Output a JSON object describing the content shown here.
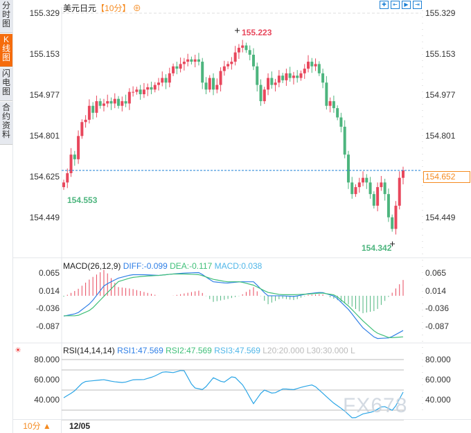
{
  "sidebar": {
    "tabs": [
      {
        "label": "分时图"
      },
      {
        "label": "K线图",
        "active": true
      },
      {
        "label": "闪电图"
      },
      {
        "label": "合约资料"
      }
    ]
  },
  "header": {
    "symbol": "美元日元",
    "period": "【10分】",
    "add_icon": "plus-circle-icon",
    "tools": [
      "crosshair-icon",
      "fit-left-icon",
      "play-icon",
      "fit-right-icon"
    ]
  },
  "colors": {
    "up": "#e8475c",
    "down": "#4db57e",
    "diff": "#2f7fe6",
    "dea": "#3fbf78",
    "rsi": "#2aa5e6",
    "accent": "#f56c0d"
  },
  "main": {
    "y_ticks": [
      "155.329",
      "155.153",
      "154.977",
      "154.801",
      "154.625",
      "154.449"
    ],
    "y_ticks_right": [
      "155.329",
      "155.153",
      "154.977",
      "154.801",
      "154.449"
    ],
    "current_price": "154.652",
    "high_label": "155.223",
    "low_label": "154.342",
    "start_low_label": "154.553",
    "close": [
      154.6,
      154.64,
      154.72,
      154.7,
      154.8,
      154.86,
      154.87,
      154.93,
      154.9,
      154.95,
      154.93,
      154.94,
      154.95,
      154.94,
      154.96,
      154.93,
      154.95,
      154.94,
      154.99,
      154.99,
      155.0,
      154.98,
      155.0,
      155.01,
      155.0,
      155.02,
      155.03,
      155.05,
      155.03,
      155.07,
      155.1,
      155.09,
      155.11,
      155.12,
      155.13,
      155.12,
      155.13,
      155.12,
      155.03,
      155.0,
      155.05,
      155.0,
      155.02,
      155.08,
      155.1,
      155.11,
      155.12,
      155.16,
      155.18,
      155.19,
      155.17,
      155.15,
      155.1,
      155.02,
      154.95,
      155.0,
      155.05,
      155.02,
      155.03,
      155.06,
      155.04,
      155.07,
      155.05,
      155.06,
      155.05,
      155.07,
      155.09,
      155.12,
      155.1,
      155.11,
      155.07,
      155.03,
      154.93,
      154.95,
      154.92,
      154.88,
      154.84,
      154.72,
      154.6,
      154.55,
      154.58,
      154.6,
      154.62,
      154.6,
      154.55,
      154.5,
      154.58,
      154.6,
      154.55,
      154.45,
      154.4,
      154.5,
      154.62,
      154.652
    ]
  },
  "macd": {
    "label": "MACD(26,12,9)",
    "diff_label": "DIFF:-0.099",
    "dea_label": "DEA:-0.117",
    "macd_label": "MACD:0.038",
    "y_ticks": [
      "0.065",
      "0.014",
      "-0.036",
      "-0.087"
    ],
    "diff": [
      -0.058,
      -0.05,
      -0.02,
      0.03,
      0.05,
      0.06,
      0.06,
      0.058,
      0.062,
      0.065,
      0.066,
      0.04,
      0.036,
      0.04,
      0.04,
      0.0,
      0.0,
      -0.002,
      0.006,
      0.01,
      -0.002,
      -0.04,
      -0.09,
      -0.122,
      -0.12,
      -0.099
    ],
    "dea": [
      -0.057,
      -0.057,
      -0.04,
      0.0,
      0.04,
      0.052,
      0.056,
      0.058,
      0.062,
      0.062,
      0.06,
      0.047,
      0.04,
      0.04,
      0.03,
      0.01,
      0.003,
      0.003,
      0.005,
      0.008,
      0.002,
      -0.03,
      -0.07,
      -0.105,
      -0.12,
      -0.117
    ]
  },
  "rsi": {
    "label": "RSI(14,14,14)",
    "rsi1": "RSI1:47.569",
    "rsi2": "RSI2:47.569",
    "rsi3": "RSI3:47.569",
    "l20": "L20:20.000",
    "l30": "L30:30.000",
    "l": "L",
    "y_ticks": [
      "80.000",
      "60.000",
      "40.000"
    ],
    "values": [
      42,
      48,
      58,
      59,
      60,
      58,
      57,
      60,
      60,
      63,
      68,
      67,
      70,
      52,
      50,
      62,
      57,
      64,
      54,
      36,
      50,
      46,
      51,
      50,
      53,
      55,
      46,
      37,
      30,
      21,
      26,
      28,
      34,
      29,
      47.569
    ]
  },
  "footer": {
    "period": "10分 ▲",
    "date": "12/05"
  },
  "watermark": "FX678"
}
